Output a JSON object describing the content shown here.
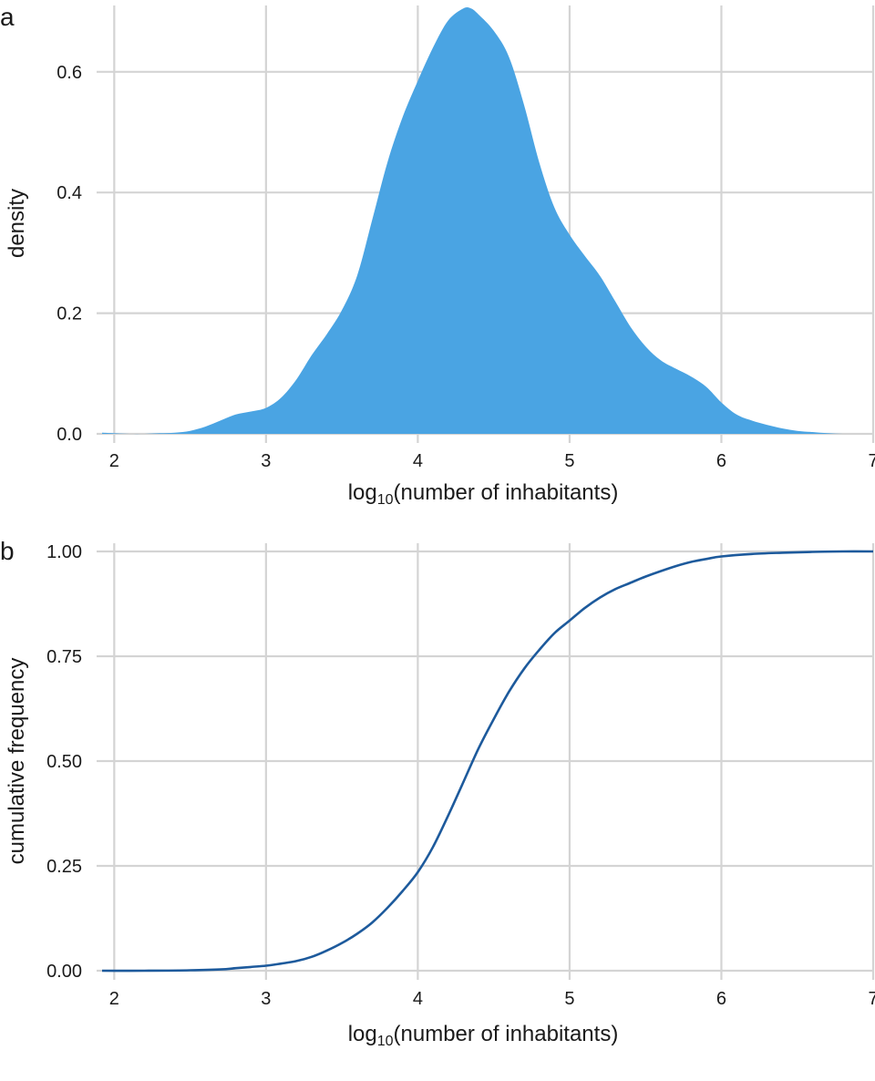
{
  "colors": {
    "density_fill": "#4aa4e3",
    "cdf_line": "#1d5a9c",
    "grid": "#d4d4d4"
  },
  "chart_data": [
    {
      "type": "area",
      "panel_label": "a",
      "xlabel": {
        "prefix": "log",
        "subscript": "10",
        "suffix": "(number of inhabitants)"
      },
      "ylabel": "density",
      "xlim": [
        1.92,
        7.0
      ],
      "ylim": [
        0,
        0.71
      ],
      "xticks": [
        2,
        3,
        4,
        5,
        6,
        7
      ],
      "xtick_labels": [
        "2",
        "3",
        "4",
        "5",
        "6",
        "7"
      ],
      "yticks": [
        0,
        0.2,
        0.4,
        0.6
      ],
      "ytick_labels": [
        "0.0",
        "0.2",
        "0.4",
        "0.6"
      ],
      "grid": true,
      "series": [
        {
          "x": [
            1.92,
            2.0,
            2.1,
            2.2,
            2.3,
            2.4,
            2.5,
            2.6,
            2.7,
            2.8,
            2.9,
            3.0,
            3.1,
            3.2,
            3.3,
            3.4,
            3.5,
            3.6,
            3.7,
            3.8,
            3.9,
            4.0,
            4.1,
            4.2,
            4.3,
            4.35,
            4.4,
            4.5,
            4.6,
            4.7,
            4.8,
            4.9,
            5.0,
            5.1,
            5.2,
            5.3,
            5.4,
            5.5,
            5.6,
            5.7,
            5.8,
            5.9,
            6.0,
            6.1,
            6.2,
            6.3,
            6.4,
            6.5,
            6.6,
            6.7,
            6.8,
            6.9,
            7.0
          ],
          "y": [
            0.002,
            0.001,
            0.0,
            0.0,
            0.001,
            0.002,
            0.005,
            0.012,
            0.022,
            0.032,
            0.037,
            0.043,
            0.06,
            0.09,
            0.13,
            0.165,
            0.205,
            0.262,
            0.355,
            0.45,
            0.525,
            0.585,
            0.64,
            0.685,
            0.705,
            0.705,
            0.695,
            0.668,
            0.625,
            0.545,
            0.45,
            0.375,
            0.33,
            0.295,
            0.262,
            0.22,
            0.178,
            0.145,
            0.122,
            0.108,
            0.095,
            0.078,
            0.052,
            0.032,
            0.022,
            0.015,
            0.009,
            0.005,
            0.003,
            0.001,
            0.0,
            0.0,
            0.0
          ]
        }
      ]
    },
    {
      "type": "line",
      "panel_label": "b",
      "xlabel": {
        "prefix": "log",
        "subscript": "10",
        "suffix": "(number of inhabitants)"
      },
      "ylabel": "cumulative frequency",
      "xlim": [
        1.92,
        7.0
      ],
      "ylim": [
        0,
        1.0
      ],
      "xticks": [
        2,
        3,
        4,
        5,
        6,
        7
      ],
      "xtick_labels": [
        "2",
        "3",
        "4",
        "5",
        "6",
        "7"
      ],
      "yticks": [
        0,
        0.25,
        0.5,
        0.75,
        1.0
      ],
      "ytick_labels": [
        "0.00",
        "0.25",
        "0.50",
        "0.75",
        "1.00"
      ],
      "grid": true,
      "series": [
        {
          "x": [
            1.92,
            2.2,
            2.5,
            2.7,
            2.8,
            2.9,
            3.0,
            3.1,
            3.2,
            3.3,
            3.4,
            3.5,
            3.6,
            3.7,
            3.8,
            3.9,
            4.0,
            4.1,
            4.2,
            4.3,
            4.4,
            4.5,
            4.6,
            4.7,
            4.8,
            4.9,
            5.0,
            5.1,
            5.2,
            5.3,
            5.4,
            5.5,
            5.6,
            5.7,
            5.8,
            5.9,
            6.0,
            6.2,
            6.4,
            6.6,
            6.8,
            7.0
          ],
          "y": [
            0.0,
            0.0,
            0.001,
            0.003,
            0.006,
            0.009,
            0.012,
            0.017,
            0.023,
            0.033,
            0.048,
            0.066,
            0.088,
            0.115,
            0.15,
            0.19,
            0.235,
            0.295,
            0.37,
            0.45,
            0.53,
            0.6,
            0.665,
            0.72,
            0.765,
            0.805,
            0.835,
            0.865,
            0.89,
            0.91,
            0.925,
            0.94,
            0.953,
            0.965,
            0.975,
            0.982,
            0.988,
            0.994,
            0.997,
            0.999,
            1.0,
            1.0
          ]
        }
      ]
    }
  ]
}
